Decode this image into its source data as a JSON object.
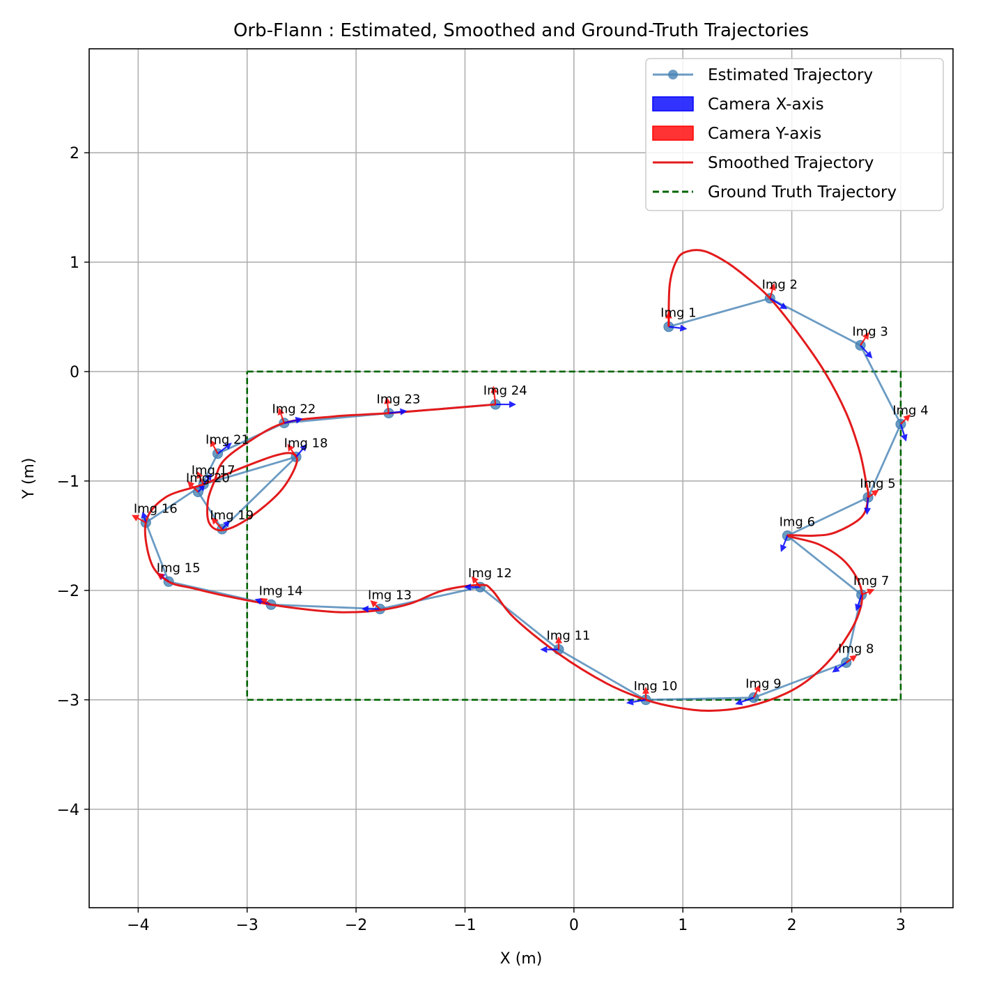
{
  "chart_data": {
    "type": "line",
    "title": "Orb-Flann : Estimated, Smoothed and Ground-Truth Trajectories",
    "xlabel": "X (m)",
    "ylabel": "Y (m)",
    "xlim": [
      -4.45,
      3.48
    ],
    "ylim": [
      -4.9,
      2.95
    ],
    "xticks": [
      -4,
      -3,
      -2,
      -1,
      0,
      1,
      2,
      3
    ],
    "yticks": [
      -4,
      -3,
      -2,
      -1,
      0,
      1,
      2
    ],
    "xtick_labels": [
      "−4",
      "−3",
      "−2",
      "−1",
      "0",
      "1",
      "2",
      "3"
    ],
    "ytick_labels": [
      "−4",
      "−3",
      "−2",
      "−1",
      "0",
      "1",
      "2"
    ],
    "grid": true,
    "legend_position": "top-right",
    "legend": [
      {
        "label": "Estimated Trajectory",
        "kind": "line-marker",
        "color": "#4682b4"
      },
      {
        "label": "Camera X-axis",
        "kind": "patch",
        "color": "#0000ff"
      },
      {
        "label": "Camera Y-axis",
        "kind": "patch",
        "color": "#ff0000"
      },
      {
        "label": "Smoothed Trajectory",
        "kind": "line",
        "color": "#e31a1c"
      },
      {
        "label": "Ground Truth Trajectory",
        "kind": "dashed",
        "color": "#006400"
      }
    ],
    "estimated": {
      "name": "Estimated Trajectory",
      "color": "#4682b4",
      "points": [
        {
          "label": "Img 1",
          "x": 0.87,
          "y": 0.41,
          "xaxis": [
            0.17,
            -0.02
          ],
          "yaxis": [
            0.0,
            0.14
          ]
        },
        {
          "label": "Img 2",
          "x": 1.8,
          "y": 0.67,
          "xaxis": [
            0.16,
            -0.1
          ],
          "yaxis": [
            0.04,
            0.14
          ]
        },
        {
          "label": "Img 3",
          "x": 2.63,
          "y": 0.24,
          "xaxis": [
            0.11,
            -0.12
          ],
          "yaxis": [
            0.08,
            0.12
          ]
        },
        {
          "label": "Img 4",
          "x": 3.0,
          "y": -0.48,
          "xaxis": [
            0.05,
            -0.16
          ],
          "yaxis": [
            0.09,
            0.09
          ]
        },
        {
          "label": "Img 5",
          "x": 2.7,
          "y": -1.15,
          "xaxis": [
            -0.01,
            -0.16
          ],
          "yaxis": [
            0.1,
            0.07
          ]
        },
        {
          "label": "Img 6",
          "x": 1.96,
          "y": -1.5,
          "xaxis": [
            -0.06,
            -0.15
          ],
          "yaxis": [
            0.0,
            0.0
          ]
        },
        {
          "label": "Img 7",
          "x": 2.64,
          "y": -2.04,
          "xaxis": [
            -0.05,
            -0.15
          ],
          "yaxis": [
            0.12,
            0.05
          ]
        },
        {
          "label": "Img 8",
          "x": 2.5,
          "y": -2.66,
          "xaxis": [
            -0.13,
            -0.09
          ],
          "yaxis": [
            0.1,
            0.07
          ]
        },
        {
          "label": "Img 9",
          "x": 1.65,
          "y": -2.98,
          "xaxis": [
            -0.17,
            -0.06
          ],
          "yaxis": [
            0.06,
            0.12
          ]
        },
        {
          "label": "Img 10",
          "x": 0.66,
          "y": -3.0,
          "xaxis": [
            -0.18,
            -0.03
          ],
          "yaxis": [
            0.0,
            0.12
          ]
        },
        {
          "label": "Img 11",
          "x": -0.14,
          "y": -2.54,
          "xaxis": [
            -0.17,
            0.0
          ],
          "yaxis": [
            0.0,
            0.12
          ]
        },
        {
          "label": "Img 12",
          "x": -0.86,
          "y": -1.97,
          "xaxis": [
            -0.15,
            0.0
          ],
          "yaxis": [
            -0.08,
            0.1
          ]
        },
        {
          "label": "Img 13",
          "x": -1.78,
          "y": -2.17,
          "xaxis": [
            -0.17,
            0.0
          ],
          "yaxis": [
            -0.09,
            0.08
          ]
        },
        {
          "label": "Img 14",
          "x": -2.78,
          "y": -2.13,
          "xaxis": [
            -0.15,
            0.05
          ],
          "yaxis": [
            -0.1,
            0.06
          ]
        },
        {
          "label": "Img 15",
          "x": -3.72,
          "y": -1.92,
          "xaxis": [
            -0.1,
            0.08
          ],
          "yaxis": [
            -0.11,
            0.08
          ]
        },
        {
          "label": "Img 16",
          "x": -3.93,
          "y": -1.38,
          "xaxis": [
            -0.03,
            0.1
          ],
          "yaxis": [
            -0.13,
            0.07
          ]
        },
        {
          "label": "Img 17",
          "x": -3.4,
          "y": -1.03,
          "xaxis": [
            0.08,
            0.1
          ],
          "yaxis": [
            -0.06,
            0.12
          ]
        },
        {
          "label": "Img 18",
          "x": -2.55,
          "y": -0.78,
          "xaxis": [
            0.1,
            0.12
          ],
          "yaxis": [
            -0.08,
            0.12
          ]
        },
        {
          "label": "Img 19",
          "x": -3.23,
          "y": -1.44,
          "xaxis": [
            0.07,
            0.08
          ],
          "yaxis": [
            -0.1,
            0.11
          ]
        },
        {
          "label": "Img 20",
          "x": -3.45,
          "y": -1.1,
          "xaxis": [
            0.06,
            0.06
          ],
          "yaxis": [
            -0.1,
            0.1
          ]
        },
        {
          "label": "Img 21",
          "x": -3.27,
          "y": -0.75,
          "xaxis": [
            0.13,
            0.1
          ],
          "yaxis": [
            -0.07,
            0.13
          ]
        },
        {
          "label": "Img 22",
          "x": -2.66,
          "y": -0.47,
          "xaxis": [
            0.17,
            0.04
          ],
          "yaxis": [
            -0.05,
            0.14
          ]
        },
        {
          "label": "Img 23",
          "x": -1.7,
          "y": -0.38,
          "xaxis": [
            0.17,
            0.02
          ],
          "yaxis": [
            -0.02,
            0.15
          ]
        },
        {
          "label": "Img 24",
          "x": -0.72,
          "y": -0.3,
          "xaxis": [
            0.19,
            0.0
          ],
          "yaxis": [
            -0.02,
            0.17
          ]
        }
      ]
    },
    "smoothed": {
      "name": "Smoothed Trajectory",
      "color": "#e31a1c",
      "points": [
        [
          0.87,
          0.41
        ],
        [
          0.88,
          0.8
        ],
        [
          0.95,
          1.03
        ],
        [
          1.05,
          1.1
        ],
        [
          1.2,
          1.1
        ],
        [
          1.4,
          1.0
        ],
        [
          1.6,
          0.85
        ],
        [
          1.8,
          0.67
        ],
        [
          2.05,
          0.36
        ],
        [
          2.3,
          0.0
        ],
        [
          2.5,
          -0.38
        ],
        [
          2.62,
          -0.72
        ],
        [
          2.68,
          -1.0
        ],
        [
          2.7,
          -1.15
        ],
        [
          2.64,
          -1.33
        ],
        [
          2.4,
          -1.47
        ],
        [
          2.2,
          -1.5
        ],
        [
          1.96,
          -1.5
        ],
        [
          2.25,
          -1.58
        ],
        [
          2.5,
          -1.75
        ],
        [
          2.64,
          -2.0
        ],
        [
          2.6,
          -2.25
        ],
        [
          2.42,
          -2.55
        ],
        [
          2.2,
          -2.78
        ],
        [
          1.95,
          -2.94
        ],
        [
          1.6,
          -3.06
        ],
        [
          1.25,
          -3.1
        ],
        [
          0.95,
          -3.07
        ],
        [
          0.66,
          -3.0
        ],
        [
          0.3,
          -2.85
        ],
        [
          -0.14,
          -2.58
        ],
        [
          -0.55,
          -2.25
        ],
        [
          -0.75,
          -2.0
        ],
        [
          -0.86,
          -1.95
        ],
        [
          -1.2,
          -2.0
        ],
        [
          -1.5,
          -2.12
        ],
        [
          -1.78,
          -2.18
        ],
        [
          -2.1,
          -2.2
        ],
        [
          -2.4,
          -2.18
        ],
        [
          -2.78,
          -2.13
        ],
        [
          -3.2,
          -2.05
        ],
        [
          -3.5,
          -1.98
        ],
        [
          -3.72,
          -1.92
        ],
        [
          -3.88,
          -1.75
        ],
        [
          -3.93,
          -1.38
        ],
        [
          -3.75,
          -1.15
        ],
        [
          -3.4,
          -1.03
        ],
        [
          -3.1,
          -0.9
        ],
        [
          -2.75,
          -0.77
        ],
        [
          -2.58,
          -0.75
        ],
        [
          -2.55,
          -0.85
        ],
        [
          -2.7,
          -1.1
        ],
        [
          -3.0,
          -1.35
        ],
        [
          -3.23,
          -1.45
        ],
        [
          -3.35,
          -1.38
        ],
        [
          -3.36,
          -1.18
        ],
        [
          -3.3,
          -1.0
        ],
        [
          -3.22,
          -0.82
        ],
        [
          -3.0,
          -0.65
        ],
        [
          -2.66,
          -0.47
        ],
        [
          -2.2,
          -0.41
        ],
        [
          -1.7,
          -0.38
        ],
        [
          -1.2,
          -0.34
        ],
        [
          -0.72,
          -0.3
        ]
      ]
    },
    "ground_truth": {
      "name": "Ground Truth Trajectory",
      "color": "#006400",
      "points": [
        [
          -3,
          0
        ],
        [
          3,
          0
        ],
        [
          3,
          -3
        ],
        [
          -3,
          -3
        ],
        [
          -3,
          0
        ]
      ]
    }
  }
}
